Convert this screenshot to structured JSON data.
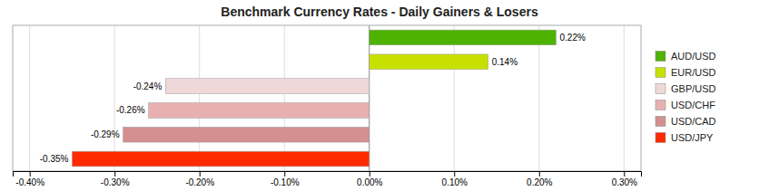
{
  "chart_data": {
    "type": "bar",
    "orientation": "horizontal",
    "title": "Benchmark Currency Rates - Daily Gainers & Losers",
    "categories": [
      "AUD/USD",
      "EUR/USD",
      "GBP/USD",
      "USD/CHF",
      "USD/CAD",
      "USD/JPY"
    ],
    "values": [
      0.0022,
      0.0014,
      -0.0024,
      -0.0026,
      -0.0029,
      -0.0035
    ],
    "value_labels": [
      "0.22%",
      "0.14%",
      "-0.24%",
      "-0.26%",
      "-0.29%",
      "-0.35%"
    ],
    "colors": [
      "#4db300",
      "#c8e000",
      "#f0d8d8",
      "#e8b0b0",
      "#d49090",
      "#ff2a00"
    ],
    "data_labels": true,
    "xlim": [
      -0.0042,
      0.0032
    ],
    "xticks": [
      {
        "value": -0.004,
        "label": "-0.40%"
      },
      {
        "value": -0.003,
        "label": "-0.30%"
      },
      {
        "value": -0.002,
        "label": "-0.20%"
      },
      {
        "value": -0.001,
        "label": "-0.10%"
      },
      {
        "value": 0.0,
        "label": "0.00%"
      },
      {
        "value": 0.001,
        "label": "0.10%"
      },
      {
        "value": 0.002,
        "label": "0.20%"
      },
      {
        "value": 0.003,
        "label": "0.30%"
      }
    ],
    "tick_labels": "x",
    "grid": true,
    "legend": "right"
  }
}
